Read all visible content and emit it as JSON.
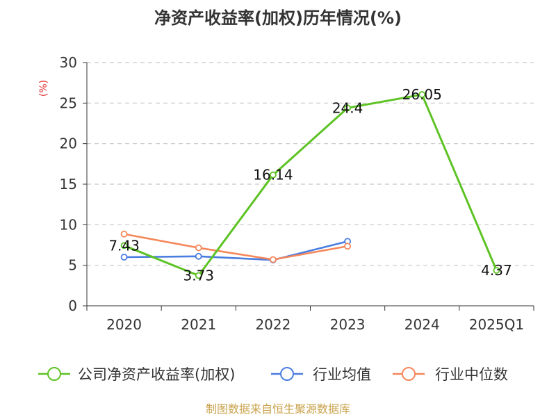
{
  "chart_data": {
    "type": "line",
    "title": "净资产收益率(加权)历年情况(%)",
    "ylabel": "(%)",
    "xlabel": "",
    "categories": [
      "2020",
      "2021",
      "2022",
      "2023",
      "2024",
      "2025Q1"
    ],
    "ylim": [
      0,
      30
    ],
    "yticks": [
      0,
      5,
      10,
      15,
      20,
      25,
      30
    ],
    "grid": true,
    "legend_position": "bottom",
    "series": [
      {
        "name": "公司净资产收益率(加权)",
        "color": "#5dc324",
        "values": [
          7.43,
          3.73,
          16.14,
          24.4,
          26.05,
          4.37
        ],
        "labels": [
          "7.43",
          "3.73",
          "16.14",
          "24.4",
          "26.05",
          "4.37"
        ]
      },
      {
        "name": "行业均值",
        "color": "#4a7de0",
        "values": [
          6.0,
          6.1,
          5.65,
          7.95,
          null,
          null
        ]
      },
      {
        "name": "行业中位数",
        "color": "#f5875a",
        "values": [
          8.85,
          7.15,
          5.7,
          7.35,
          null,
          null
        ]
      }
    ]
  },
  "colors": {
    "ylabel": "#e23030",
    "source": "#c9a24a",
    "grid": "#c8c8c8",
    "axis": "#333333"
  },
  "source": "制图数据来自恒生聚源数据库"
}
